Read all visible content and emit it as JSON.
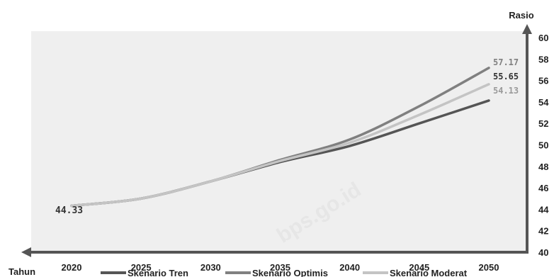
{
  "chart_data": {
    "type": "line",
    "title": "",
    "xlabel": "Tahun",
    "ylabel": "Rasio",
    "x": [
      2020,
      2025,
      2030,
      2035,
      2040,
      2045,
      2050
    ],
    "xlim": [
      2020,
      2050
    ],
    "ylim": [
      40,
      60
    ],
    "y_ticks": [
      40,
      42,
      44,
      46,
      48,
      50,
      52,
      54,
      56,
      58,
      60
    ],
    "grid": false,
    "legend_position": "bottom",
    "series": [
      {
        "name": "Skenario Tren",
        "color": "#555555",
        "values": [
          44.33,
          45.0,
          46.6,
          48.4,
          49.9,
          52.0,
          54.13
        ],
        "end_label": "54.13"
      },
      {
        "name": "Skenario Optimis",
        "color": "#808080",
        "values": [
          44.33,
          45.0,
          46.6,
          48.6,
          50.5,
          53.6,
          57.17
        ],
        "end_label": "57.17"
      },
      {
        "name": "Skenario Moderat",
        "color": "#c4c4c4",
        "values": [
          44.33,
          45.0,
          46.6,
          48.5,
          50.2,
          52.8,
          55.65
        ],
        "end_label": "55.65"
      }
    ],
    "start_label": "44.33",
    "end_label_colors": [
      "#808080",
      "#333333",
      "#9a9a9a"
    ],
    "plot_background": "#efefef",
    "watermark": "bps.go.id"
  }
}
